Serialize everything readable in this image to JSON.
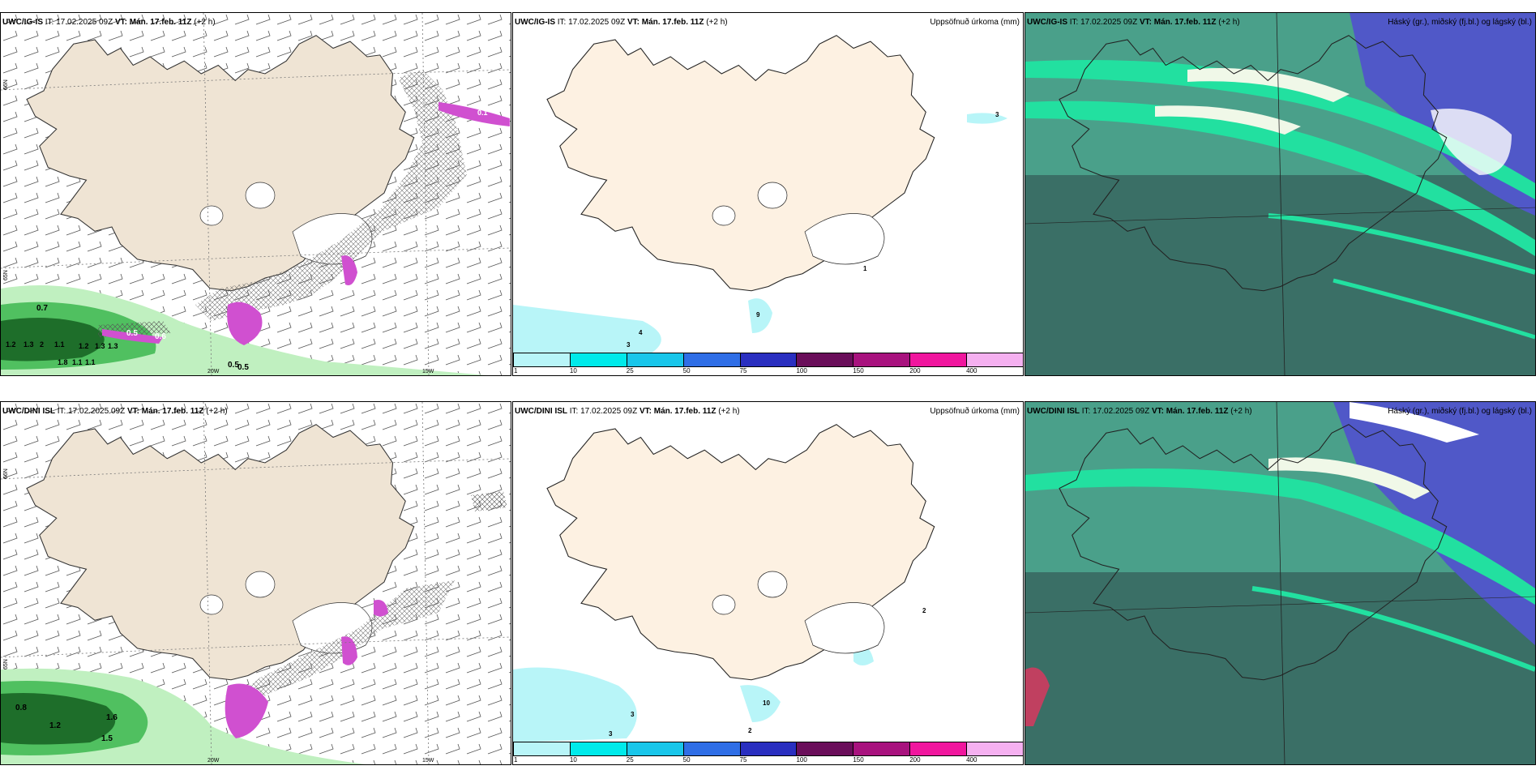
{
  "rows": [
    {
      "model": "UWC/IG-IS",
      "it_label": "IT:",
      "it_value": "17.02.2025 09Z",
      "vt_label": "VT:",
      "vt_value": "Mán. 17.feb. 11Z",
      "lead": "(+2 h)"
    },
    {
      "model": "UWC/DINI ISL",
      "it_label": "IT:",
      "it_value": "17.02.2025 09Z",
      "vt_label": "VT:",
      "vt_value": "Mán. 17.feb. 11Z",
      "lead": "(+2 h)"
    }
  ],
  "precip_title": "Uppsöfnuð úrkoma (mm)",
  "cloud_title": "Háský (gr.), miðský (fj.bl.) og lágský (bl.)",
  "precip_legend": {
    "ticks": [
      "1",
      "10",
      "25",
      "50",
      "75",
      "100",
      "150",
      "200",
      "400"
    ],
    "colors": [
      "#b8f5f8",
      "#00eaea",
      "#19c6ea",
      "#2f6ee6",
      "#2a2fc0",
      "#6a0e5a",
      "#a8127e",
      "#f0169e",
      "#f5b0f0"
    ]
  },
  "grid_labels": {
    "lat_66": "66N",
    "lat_65": "65N",
    "lat_64": "64N",
    "lon_20": "20W",
    "lon_15": "15W"
  },
  "wind_panel_top_values": [
    "0.7",
    "1.2",
    "1.3",
    "2",
    "1.1",
    "1.2",
    "1.3",
    "1.3",
    "1.8",
    "1.1",
    "1.1",
    "0.5",
    "0.6",
    "0.5",
    "0.5",
    "0.1"
  ],
  "wind_panel_bottom_values": [
    "0.8",
    "1.2",
    "1.6",
    "1.5"
  ],
  "precip_top_values": [
    "3",
    "4",
    "3",
    "9",
    "1"
  ],
  "precip_bottom_values": [
    "3",
    "3",
    "10",
    "2",
    "2"
  ],
  "colors": {
    "land": "#efe4d4",
    "glacier": "#ffffff",
    "precip_land": "#fdf1e2",
    "cloud_bg": "#4aa08a",
    "cloud_dark": "#3a6f66",
    "cloud_high": "#5058c8",
    "cloud_green": "#22e0a0",
    "rain_light": "#c0f0c0",
    "rain_mid": "#50c060",
    "rain_dark": "#1e6e2a",
    "snow_pink": "#d050d0"
  }
}
